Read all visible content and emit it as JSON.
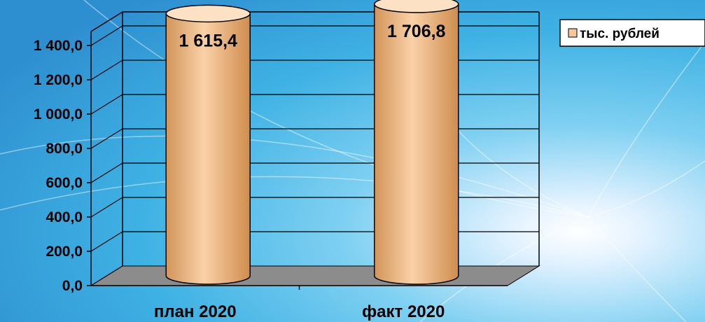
{
  "chart_data": {
    "type": "bar",
    "shape": "cylinder",
    "categories": [
      "план 2020",
      "факт 2020"
    ],
    "series": [
      {
        "name": "тыс. рублей",
        "values": [
          1615.4,
          1706.8
        ],
        "data_labels": [
          "1 615,4",
          "1 706,8"
        ]
      }
    ],
    "ylim": [
      0,
      1400
    ],
    "yticks": [
      0,
      200,
      400,
      600,
      800,
      1000,
      1200,
      1400
    ],
    "ytick_labels": [
      "0,0",
      "200,0",
      "400,0",
      "600,0",
      "800,0",
      "1 000,0",
      "1 200,0",
      "1 400,0"
    ],
    "grid": true,
    "legend_position": "top-right",
    "colors": {
      "bar_fill": "#F5C79A",
      "bar_top": "#FCE1C4",
      "floor": "#8C8C8C",
      "gridline": "#000000",
      "background": "#4FB9E6",
      "legend_box": "#FFFFFF"
    }
  }
}
